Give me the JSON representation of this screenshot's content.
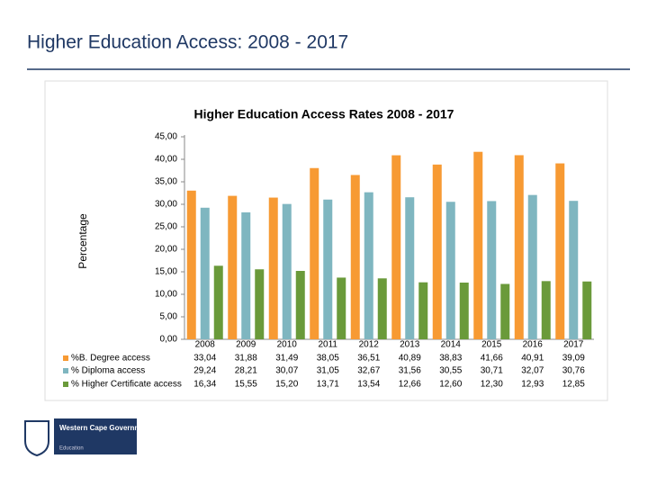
{
  "slide_title": "Higher Education Access: 2008 - 2017",
  "logo": {
    "name": "Western Cape Government",
    "department": "Education"
  },
  "chart_data": {
    "type": "bar",
    "title": "Higher Education Access Rates 2008 - 2017",
    "y_label": "Percentage",
    "categories": [
      "2008",
      "2009",
      "2010",
      "2011",
      "2012",
      "2013",
      "2014",
      "2015",
      "2016",
      "2017"
    ],
    "series": [
      {
        "name": "%B. Degree access",
        "color": "#f79a33",
        "values": [
          33.04,
          31.88,
          31.49,
          38.05,
          36.51,
          40.89,
          38.83,
          41.66,
          40.91,
          39.09
        ],
        "value_labels": [
          "33,04",
          "31,88",
          "31,49",
          "38,05",
          "36,51",
          "40,89",
          "38,83",
          "41,66",
          "40,91",
          "39,09"
        ]
      },
      {
        "name": "% Diploma access",
        "color": "#7fb6c0",
        "values": [
          29.24,
          28.21,
          30.07,
          31.05,
          32.67,
          31.56,
          30.55,
          30.71,
          32.07,
          30.76
        ],
        "value_labels": [
          "29,24",
          "28,21",
          "30,07",
          "31,05",
          "32,67",
          "31,56",
          "30,55",
          "30,71",
          "32,07",
          "30,76"
        ]
      },
      {
        "name": "% Higher Certificate access",
        "color": "#6a9a3a",
        "values": [
          16.34,
          15.55,
          15.2,
          13.71,
          13.54,
          12.66,
          12.6,
          12.3,
          12.93,
          12.85
        ],
        "value_labels": [
          "16,34",
          "15,55",
          "15,20",
          "13,71",
          "13,54",
          "12,66",
          "12,60",
          "12,30",
          "12,93",
          "12,85"
        ]
      }
    ],
    "ylim": [
      0,
      45
    ],
    "yticks": [
      {
        "value": 0,
        "label": "0,00"
      },
      {
        "value": 5,
        "label": "5,00"
      },
      {
        "value": 10,
        "label": "10,00"
      },
      {
        "value": 15,
        "label": "15,00"
      },
      {
        "value": 20,
        "label": "20,00"
      },
      {
        "value": 25,
        "label": "25,00"
      },
      {
        "value": 30,
        "label": "30,00"
      },
      {
        "value": 35,
        "label": "35,00"
      },
      {
        "value": 40,
        "label": "40,00"
      },
      {
        "value": 45,
        "label": "45,00"
      }
    ],
    "grid": false
  }
}
